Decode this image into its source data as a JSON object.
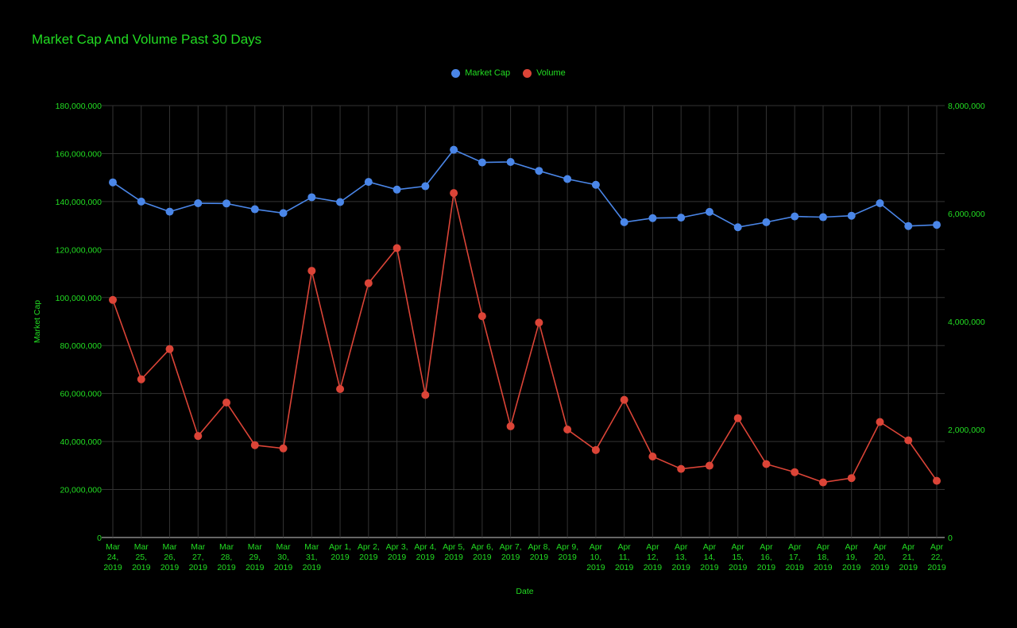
{
  "chart_data": {
    "type": "line",
    "title": "Market Cap And Volume Past 30 Days",
    "xlabel": "Date",
    "ylabel": "Market Cap",
    "legend_position": "top",
    "grid": true,
    "ylim": [
      0,
      180000000
    ],
    "y2lim": [
      0,
      8000000
    ],
    "y_ticks": [
      "0",
      "20,000,000",
      "40,000,000",
      "60,000,000",
      "80,000,000",
      "100,000,000",
      "120,000,000",
      "140,000,000",
      "160,000,000",
      "180,000,000"
    ],
    "y2_ticks": [
      "0",
      "2,000,000",
      "4,000,000",
      "6,000,000",
      "8,000,000"
    ],
    "categories": [
      [
        "Mar",
        "24,",
        "2019"
      ],
      [
        "Mar",
        "25,",
        "2019"
      ],
      [
        "Mar",
        "26,",
        "2019"
      ],
      [
        "Mar",
        "27,",
        "2019"
      ],
      [
        "Mar",
        "28,",
        "2019"
      ],
      [
        "Mar",
        "29,",
        "2019"
      ],
      [
        "Mar",
        "30,",
        "2019"
      ],
      [
        "Mar",
        "31,",
        "2019"
      ],
      [
        "Apr 1,",
        "2019"
      ],
      [
        "Apr 2,",
        "2019"
      ],
      [
        "Apr 3,",
        "2019"
      ],
      [
        "Apr 4,",
        "2019"
      ],
      [
        "Apr 5,",
        "2019"
      ],
      [
        "Apr 6,",
        "2019"
      ],
      [
        "Apr 7,",
        "2019"
      ],
      [
        "Apr 8,",
        "2019"
      ],
      [
        "Apr 9,",
        "2019"
      ],
      [
        "Apr",
        "10,",
        "2019"
      ],
      [
        "Apr",
        "11,",
        "2019"
      ],
      [
        "Apr",
        "12,",
        "2019"
      ],
      [
        "Apr",
        "13,",
        "2019"
      ],
      [
        "Apr",
        "14,",
        "2019"
      ],
      [
        "Apr",
        "15,",
        "2019"
      ],
      [
        "Apr",
        "16,",
        "2019"
      ],
      [
        "Apr",
        "17,",
        "2019"
      ],
      [
        "Apr",
        "18,",
        "2019"
      ],
      [
        "Apr",
        "19,",
        "2019"
      ],
      [
        "Apr",
        "20,",
        "2019"
      ],
      [
        "Apr",
        "21,",
        "2019"
      ],
      [
        "Apr",
        "22,",
        "2019"
      ]
    ],
    "series": [
      {
        "name": "Market Cap",
        "axis": "left",
        "color": "#4a86e8",
        "values": [
          148000000,
          140000000,
          135800000,
          139300000,
          139200000,
          136800000,
          135200000,
          141800000,
          139800000,
          148200000,
          145000000,
          146400000,
          161600000,
          156300000,
          156500000,
          152800000,
          149400000,
          147000000,
          131400000,
          133100000,
          133300000,
          135700000,
          129300000,
          131400000,
          133800000,
          133500000,
          134100000,
          139300000,
          129800000,
          130300000
        ]
      },
      {
        "name": "Volume",
        "axis": "right",
        "color": "#db4437",
        "values": [
          4400000,
          2930000,
          3490000,
          1880000,
          2500000,
          1710000,
          1650000,
          4940000,
          2750000,
          4710000,
          5360000,
          2640000,
          6380000,
          4100000,
          2060000,
          3980000,
          2000000,
          1620000,
          2550000,
          1500000,
          1270000,
          1330000,
          2210000,
          1360000,
          1210000,
          1020000,
          1100000,
          2140000,
          1800000,
          1050000
        ]
      }
    ]
  }
}
